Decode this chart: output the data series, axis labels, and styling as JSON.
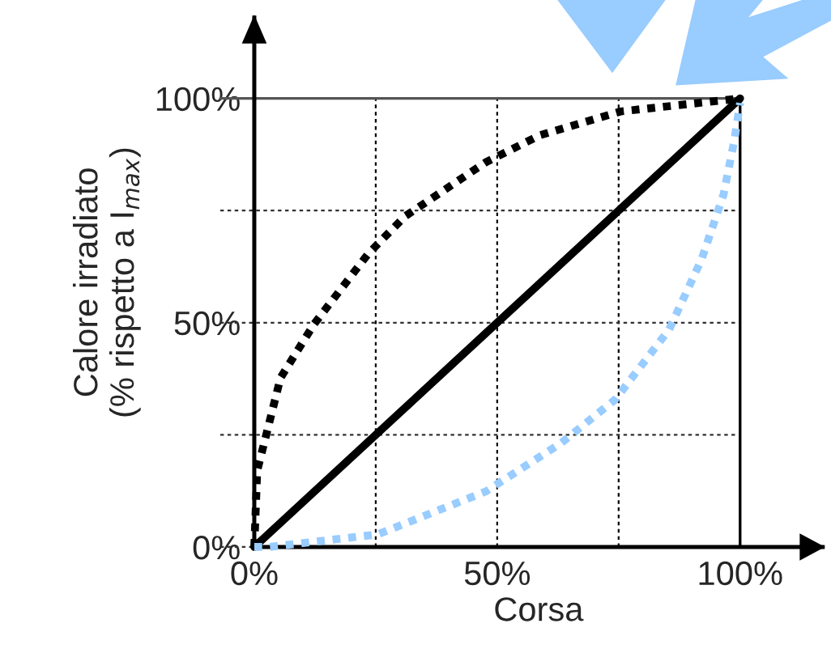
{
  "chart_data": {
    "type": "line",
    "xlabel": "Corsa",
    "ylabel": "Calore irradiato\n(% rispetto a I$_{max}$)",
    "xlim": [
      0,
      117
    ],
    "ylim": [
      0,
      118
    ],
    "xticks": [
      {
        "value": 0,
        "label": "0%"
      },
      {
        "value": 25,
        "label": null
      },
      {
        "value": 50,
        "label": "50%"
      },
      {
        "value": 75,
        "label": null
      },
      {
        "value": 100,
        "label": "100%"
      }
    ],
    "yticks": [
      {
        "value": 0,
        "label": "0%"
      },
      {
        "value": 25,
        "label": null
      },
      {
        "value": 50,
        "label": "50%"
      },
      {
        "value": 75,
        "label": null
      },
      {
        "value": 100,
        "label": "100%"
      }
    ],
    "grid": true,
    "ref_lines": [
      {
        "axis": "y",
        "value": 100,
        "label": null,
        "color": "#555555",
        "line_style": "solid"
      },
      {
        "axis": "x",
        "value": 100,
        "label": null,
        "color": "#000000",
        "line_style": "solid"
      }
    ],
    "series": [
      {
        "color": "#000000",
        "line_style": "dotted",
        "x": [
          0,
          0.6,
          5.4,
          12.3,
          23.4,
          31,
          47.7,
          58.8,
          75.4,
          100
        ],
        "values": [
          0,
          17,
          37.7,
          49.7,
          65.3,
          73.7,
          85.8,
          91.8,
          97.1,
          100
        ]
      },
      {
        "color": "#000000",
        "line_style": "solid",
        "x": [
          0,
          100
        ],
        "values": [
          0,
          100
        ]
      },
      {
        "color": "#99ccff",
        "line_style": "dotted",
        "x": [
          0,
          3,
          25.4,
          47.7,
          63.2,
          74.3,
          85.4,
          92.1,
          96.6,
          98.8,
          100
        ],
        "values": [
          0,
          0,
          2.8,
          12.4,
          23.2,
          32.9,
          48.5,
          64.2,
          78.6,
          90.6,
          99
        ]
      }
    ]
  }
}
